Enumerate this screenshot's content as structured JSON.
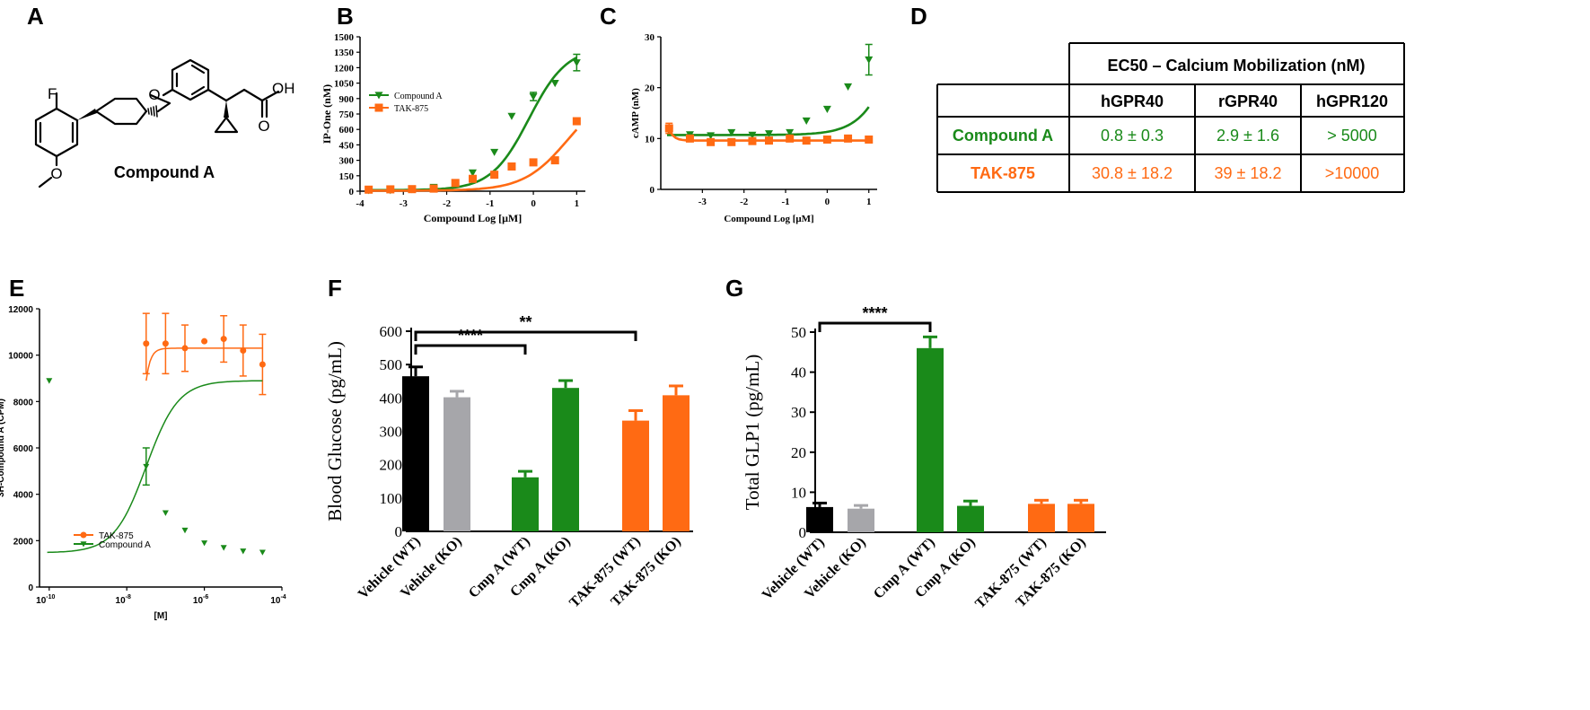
{
  "panels": {
    "A": "A",
    "B": "B",
    "C": "C",
    "D": "D",
    "E": "E",
    "F": "F",
    "G": "G"
  },
  "structure": {
    "label": "Compound A",
    "atoms": {
      "F": "F",
      "O_ether": "O",
      "O_methoxy": "O",
      "OH": "OH",
      "O_carbonyl": "O"
    }
  },
  "table": {
    "title": "EC50 – Calcium Mobilization (nM)",
    "columns": [
      "hGPR40",
      "rGPR40",
      "hGPR120"
    ],
    "rows": [
      {
        "name": "Compound A",
        "color": "#1a8a1a",
        "values": [
          "0.8 ± 0.3",
          "2.9 ± 1.6",
          "> 5000"
        ]
      },
      {
        "name": "TAK-875",
        "color": "#ff6a13",
        "values": [
          "30.8 ± 18.2",
          "39 ± 18.2",
          ">10000"
        ]
      }
    ]
  },
  "colors": {
    "green": "#1a8a1a",
    "orange": "#ff6a13",
    "black": "#000000",
    "gray": "#a6a6aa"
  },
  "chart_data": [
    {
      "id": "B",
      "type": "scatter",
      "xlabel": "Compound Log [μM]",
      "ylabel": "IP-One (nM)",
      "xlim": [
        -4,
        1.2
      ],
      "ylim": [
        0,
        1500
      ],
      "xticks": [
        -4,
        -3,
        -2,
        -1,
        0,
        1
      ],
      "xtick_labels": [
        "-4",
        "-3",
        "-2",
        "-1",
        "0",
        "1"
      ],
      "yticks": [
        0,
        150,
        300,
        450,
        600,
        750,
        900,
        1050,
        1200,
        1350,
        1500
      ],
      "ytick_labels": [
        "0",
        "150",
        "300",
        "450",
        "600",
        "750",
        "900",
        "1050",
        "1200",
        "1350",
        "1500"
      ],
      "legend": [
        "Compound A",
        "TAK-875"
      ],
      "series": [
        {
          "name": "Compound A",
          "color": "#1a8a1a",
          "marker": "tri-down",
          "x": [
            -3.8,
            -3.3,
            -2.8,
            -2.3,
            -1.8,
            -1.4,
            -0.9,
            -0.5,
            0,
            0.5,
            1
          ],
          "y": [
            10,
            10,
            20,
            40,
            80,
            180,
            380,
            730,
            920,
            1050,
            1250
          ],
          "err": [
            0,
            0,
            0,
            0,
            0,
            0,
            0,
            0,
            40,
            0,
            80
          ],
          "fit": {
            "bottom": 10,
            "top": 1400,
            "logec50": -0.1,
            "hill": 1
          }
        },
        {
          "name": "TAK-875",
          "color": "#ff6a13",
          "marker": "square",
          "x": [
            -3.8,
            -3.3,
            -2.8,
            -2.3,
            -1.8,
            -1.4,
            -0.9,
            -0.5,
            0,
            0.5,
            1
          ],
          "y": [
            15,
            18,
            20,
            25,
            80,
            120,
            160,
            240,
            280,
            300,
            680
          ],
          "err": [
            0,
            0,
            0,
            0,
            0,
            0,
            0,
            0,
            0,
            0,
            0
          ],
          "fit": {
            "bottom": 5,
            "top": 1000,
            "logec50": 0.8,
            "hill": 0.85
          }
        }
      ]
    },
    {
      "id": "C",
      "type": "scatter",
      "xlabel": "Compound Log [μM]",
      "ylabel": "cAMP (nM)",
      "xlim": [
        -4,
        1.2
      ],
      "ylim": [
        0,
        30
      ],
      "xticks": [
        -3,
        -2,
        -1,
        0,
        1
      ],
      "xtick_labels": [
        "-3",
        "-2",
        "-1",
        "0",
        "1"
      ],
      "yticks": [
        0,
        10,
        20,
        30
      ],
      "ytick_labels": [
        "0",
        "10",
        "20",
        "30"
      ],
      "series": [
        {
          "name": "Compound A",
          "color": "#1a8a1a",
          "marker": "tri-down",
          "x": [
            -3.8,
            -3.3,
            -2.8,
            -2.3,
            -1.8,
            -1.4,
            -0.9,
            -0.5,
            0,
            0.5,
            1
          ],
          "y": [
            11.5,
            10.8,
            10.6,
            11.2,
            10.7,
            11.0,
            11.2,
            13.5,
            15.8,
            20.2,
            25.5
          ],
          "err": [
            0,
            0,
            0,
            0,
            0,
            0,
            0,
            0,
            0,
            0,
            3
          ],
          "fit": {
            "bottom": 10.7,
            "top": 60,
            "logec50": 1.9,
            "hill": 1
          }
        },
        {
          "name": "TAK-875",
          "color": "#ff6a13",
          "marker": "square",
          "x": [
            -3.8,
            -3.3,
            -2.8,
            -2.3,
            -1.8,
            -1.4,
            -0.9,
            -0.5,
            0,
            0.5,
            1
          ],
          "y": [
            12,
            10,
            9.3,
            9.3,
            9.5,
            9.6,
            10,
            9.6,
            9.8,
            10,
            9.8
          ],
          "err": [
            1,
            0,
            0,
            0,
            0,
            0,
            0,
            0,
            0,
            0,
            0
          ],
          "fit": {
            "flat": 9.6,
            "start": 11.8
          }
        }
      ]
    },
    {
      "id": "E",
      "type": "scatter",
      "xlabel": "[M]",
      "ylabel": "3H-Compound A (CPM)",
      "xlim": [
        -10.25,
        -4
      ],
      "ylim": [
        0,
        12000
      ],
      "xticks": [
        -10,
        -8,
        -6,
        -4
      ],
      "xtick_base": "10",
      "xtick_exps": [
        "-10",
        "-8",
        "-6",
        "-4"
      ],
      "yticks": [
        0,
        2000,
        4000,
        6000,
        8000,
        10000,
        12000
      ],
      "ytick_labels": [
        "0",
        "2000",
        "4000",
        "6000",
        "8000",
        "10000",
        "12000"
      ],
      "legend": [
        "TAK-875",
        "Compound A"
      ],
      "series": [
        {
          "name": "TAK-875",
          "color": "#ff6a13",
          "marker": "circle",
          "x": [
            -7.5,
            -7,
            -6.5,
            -6,
            -5.5,
            -5,
            -4.5
          ],
          "y": [
            10500,
            10500,
            10300,
            10600,
            10700,
            10200,
            9600
          ],
          "err": [
            1300,
            1300,
            1000,
            0,
            1000,
            1100,
            1300
          ],
          "fit": {
            "flat": 10300,
            "start": 8900
          }
        },
        {
          "name": "Compound A",
          "color": "#1a8a1a",
          "marker": "tri-down",
          "x": [
            -10,
            -7.5,
            -7,
            -6.5,
            -6,
            -5.5,
            -5,
            -4.5
          ],
          "y": [
            8900,
            5200,
            3200,
            2450,
            1900,
            1700,
            1550,
            1500
          ],
          "err": [
            0,
            800,
            0,
            0,
            0,
            0,
            0,
            0
          ],
          "fit": {
            "bottom": 1480,
            "top": 8900,
            "logec50": -7.5,
            "hill": 1.05
          }
        }
      ]
    },
    {
      "id": "F",
      "type": "bar",
      "ylabel": "Blood Glucose (pg/mL)",
      "ylim": [
        0,
        600
      ],
      "yticks": [
        0,
        100,
        200,
        300,
        400,
        500,
        600
      ],
      "ytick_labels": [
        "0",
        "100",
        "200",
        "300",
        "400",
        "500",
        "600"
      ],
      "categories": [
        "Vehicle (WT)",
        "Vehicle (KO)",
        "Cmp A (WT)",
        "Cmp A (KO)",
        "TAK-875 (WT)",
        "TAK-875 (KO)"
      ],
      "values": [
        465,
        402,
        162,
        430,
        332,
        408
      ],
      "errors": [
        28,
        18,
        18,
        22,
        30,
        28
      ],
      "bar_colors": [
        "#000000",
        "#a6a6aa",
        "#1a8a1a",
        "#1a8a1a",
        "#ff6a13",
        "#ff6a13"
      ],
      "significance": [
        {
          "from": 0,
          "to": 2,
          "label": "****"
        },
        {
          "from": 0,
          "to": 4,
          "label": "**"
        }
      ]
    },
    {
      "id": "G",
      "type": "bar",
      "ylabel": "Total GLP1 (pg/mL)",
      "ylim": [
        0,
        50
      ],
      "yticks": [
        0,
        10,
        20,
        30,
        40,
        50
      ],
      "ytick_labels": [
        "0",
        "10",
        "20",
        "30",
        "40",
        "50"
      ],
      "categories": [
        "Vehicle (WT)",
        "Vehicle (KO)",
        "Cmp A (WT)",
        "Cmp A (KO)",
        "TAK-875 (WT)",
        "TAK-875 (KO)"
      ],
      "values": [
        6.3,
        5.9,
        46,
        6.6,
        7.1,
        7.1
      ],
      "errors": [
        1,
        0.8,
        2.8,
        1.2,
        0.9,
        0.9
      ],
      "bar_colors": [
        "#000000",
        "#a6a6aa",
        "#1a8a1a",
        "#1a8a1a",
        "#ff6a13",
        "#ff6a13"
      ],
      "significance": [
        {
          "from": 0,
          "to": 2,
          "label": "****"
        }
      ]
    }
  ]
}
